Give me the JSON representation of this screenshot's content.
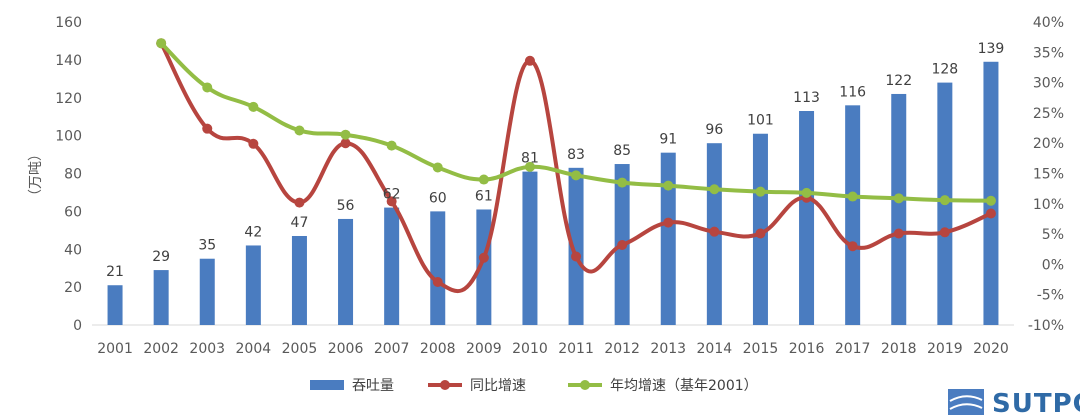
{
  "chart_data": {
    "type": "bar",
    "categories": [
      "2001",
      "2002",
      "2003",
      "2004",
      "2005",
      "2006",
      "2007",
      "2008",
      "2009",
      "2010",
      "2011",
      "2012",
      "2013",
      "2014",
      "2015",
      "2016",
      "2017",
      "2018",
      "2019",
      "2020"
    ],
    "series": [
      {
        "name": "吞吐量",
        "type": "bar",
        "axis": "left",
        "color": "#4a7cc0",
        "values": [
          21,
          29,
          35,
          42,
          47,
          56,
          62,
          60,
          61,
          81,
          83,
          85,
          91,
          96,
          101,
          113,
          116,
          122,
          128,
          139
        ],
        "labels": [
          "21",
          "29",
          "35",
          "42",
          "47",
          "56",
          "62",
          "60",
          "61",
          "81",
          "83",
          "85",
          "91",
          "96",
          "101",
          "113",
          "116",
          "122",
          "128",
          "139"
        ]
      },
      {
        "name": "同比增速",
        "type": "line",
        "axis": "right",
        "color": "#b7453f",
        "values": [
          null,
          36.5,
          22.4,
          19.9,
          10.2,
          20.0,
          10.4,
          -2.9,
          1.1,
          33.6,
          1.3,
          3.2,
          6.9,
          5.4,
          5.1,
          11.0,
          3.0,
          5.1,
          5.3,
          8.4
        ]
      },
      {
        "name": "年均增速（基年2001）",
        "type": "line",
        "axis": "right",
        "color": "#93bd45",
        "values": [
          null,
          36.5,
          29.2,
          26.0,
          22.1,
          21.4,
          19.6,
          16.0,
          14.0,
          16.1,
          14.7,
          13.5,
          13.0,
          12.4,
          12.0,
          11.8,
          11.2,
          10.9,
          10.6,
          10.5
        ]
      }
    ],
    "yAxisLeft": {
      "title": "（万吨）",
      "min": 0,
      "max": 160,
      "ticks": [
        "0",
        "20",
        "40",
        "60",
        "80",
        "100",
        "120",
        "140",
        "160"
      ]
    },
    "yAxisRight": {
      "min": -10,
      "max": 40,
      "ticks": [
        "-10%",
        "-5%",
        "0%",
        "5%",
        "10%",
        "15%",
        "20%",
        "25%",
        "30%",
        "35%",
        "40%"
      ]
    },
    "legend_position": "bottom"
  },
  "watermark": {
    "text": "SUTPC"
  }
}
